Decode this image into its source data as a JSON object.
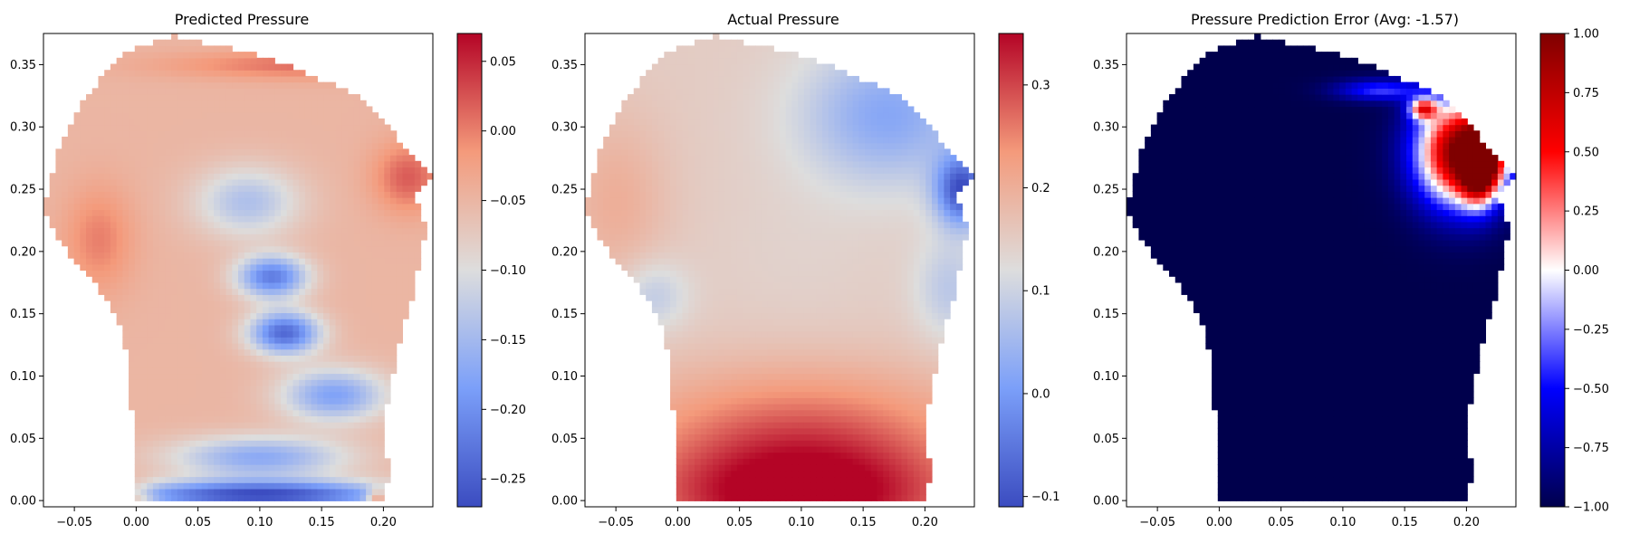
{
  "chart_data": [
    {
      "type": "heatmap",
      "title": "Predicted Pressure",
      "xlabel": "",
      "ylabel": "",
      "xlim": [
        -0.075,
        0.24
      ],
      "ylim": [
        -0.005,
        0.375
      ],
      "x_ticks": [
        -0.05,
        0.0,
        0.05,
        0.1,
        0.15,
        0.2
      ],
      "y_ticks": [
        0.0,
        0.05,
        0.1,
        0.15,
        0.2,
        0.25,
        0.3,
        0.35
      ],
      "colormap": "coolwarm",
      "colorbar": {
        "min": -0.27,
        "max": 0.07,
        "ticks": [
          -0.25,
          -0.2,
          -0.15,
          -0.1,
          -0.05,
          0.0,
          0.05
        ]
      },
      "domain_outline": [
        [
          0.0,
          0.0
        ],
        [
          0.2,
          0.0
        ],
        [
          0.205,
          0.02
        ],
        [
          0.2,
          0.06
        ],
        [
          0.21,
          0.115
        ],
        [
          0.225,
          0.17
        ],
        [
          0.235,
          0.22
        ],
        [
          0.225,
          0.245
        ],
        [
          0.24,
          0.26
        ],
        [
          0.18,
          0.325
        ],
        [
          0.11,
          0.355
        ],
        [
          0.03,
          0.373
        ],
        [
          -0.01,
          0.36
        ],
        [
          -0.045,
          0.32
        ],
        [
          -0.065,
          0.275
        ],
        [
          -0.075,
          0.235
        ],
        [
          -0.06,
          0.205
        ],
        [
          -0.03,
          0.17
        ],
        [
          -0.01,
          0.135
        ],
        [
          -0.005,
          0.09
        ],
        [
          0.0,
          0.03
        ]
      ],
      "field": {
        "base": -0.05,
        "features": [
          {
            "x": 0.1,
            "y": 0.005,
            "value": -0.27,
            "sx": 0.08,
            "sy": 0.008
          },
          {
            "x": 0.1,
            "y": 0.035,
            "value": -0.17,
            "sx": 0.05,
            "sy": 0.012
          },
          {
            "x": 0.12,
            "y": 0.135,
            "value": -0.24,
            "sx": 0.02,
            "sy": 0.012
          },
          {
            "x": 0.11,
            "y": 0.18,
            "value": -0.22,
            "sx": 0.02,
            "sy": 0.012
          },
          {
            "x": 0.16,
            "y": 0.085,
            "value": -0.18,
            "sx": 0.03,
            "sy": 0.015
          },
          {
            "x": 0.09,
            "y": 0.24,
            "value": -0.14,
            "sx": 0.03,
            "sy": 0.02
          },
          {
            "x": 0.14,
            "y": 0.35,
            "value": 0.01,
            "sx": 0.08,
            "sy": 0.008
          },
          {
            "x": 0.22,
            "y": 0.26,
            "value": 0.02,
            "sx": 0.02,
            "sy": 0.02
          },
          {
            "x": -0.03,
            "y": 0.21,
            "value": 0.0,
            "sx": 0.02,
            "sy": 0.03
          },
          {
            "x": 0.195,
            "y": 0.002,
            "value": 0.07,
            "sx": 0.006,
            "sy": 0.006
          },
          {
            "x": 0.0,
            "y": 0.0,
            "value": 0.02,
            "sx": 0.01,
            "sy": 0.01
          }
        ]
      }
    },
    {
      "type": "heatmap",
      "title": "Actual Pressure",
      "xlabel": "",
      "ylabel": "",
      "xlim": [
        -0.075,
        0.24
      ],
      "ylim": [
        -0.005,
        0.375
      ],
      "x_ticks": [
        -0.05,
        0.0,
        0.05,
        0.1,
        0.15,
        0.2
      ],
      "y_ticks": [
        0.0,
        0.05,
        0.1,
        0.15,
        0.2,
        0.25,
        0.3,
        0.35
      ],
      "colormap": "coolwarm",
      "colorbar": {
        "min": -0.11,
        "max": 0.35,
        "ticks": [
          -0.1,
          0.0,
          0.1,
          0.2,
          0.3
        ]
      },
      "domain_outline": [
        [
          0.0,
          0.0
        ],
        [
          0.2,
          0.0
        ],
        [
          0.205,
          0.02
        ],
        [
          0.2,
          0.06
        ],
        [
          0.21,
          0.115
        ],
        [
          0.225,
          0.17
        ],
        [
          0.235,
          0.22
        ],
        [
          0.225,
          0.245
        ],
        [
          0.24,
          0.26
        ],
        [
          0.18,
          0.325
        ],
        [
          0.11,
          0.355
        ],
        [
          0.03,
          0.373
        ],
        [
          -0.01,
          0.36
        ],
        [
          -0.045,
          0.32
        ],
        [
          -0.065,
          0.275
        ],
        [
          -0.075,
          0.235
        ],
        [
          -0.06,
          0.205
        ],
        [
          -0.03,
          0.17
        ],
        [
          -0.01,
          0.135
        ],
        [
          -0.005,
          0.09
        ],
        [
          0.0,
          0.03
        ]
      ],
      "field": {
        "base": 0.15,
        "features": [
          {
            "x": 0.1,
            "y": 0.0,
            "value": 0.34,
            "sx": 0.09,
            "sy": 0.03
          },
          {
            "x": 0.1,
            "y": 0.05,
            "value": 0.28,
            "sx": 0.1,
            "sy": 0.04
          },
          {
            "x": -0.05,
            "y": 0.24,
            "value": 0.2,
            "sx": 0.03,
            "sy": 0.05
          },
          {
            "x": 0.17,
            "y": 0.31,
            "value": 0.02,
            "sx": 0.05,
            "sy": 0.04
          },
          {
            "x": 0.23,
            "y": 0.25,
            "value": -0.1,
            "sx": 0.015,
            "sy": 0.02
          },
          {
            "x": 0.22,
            "y": 0.17,
            "value": 0.08,
            "sx": 0.02,
            "sy": 0.03
          },
          {
            "x": -0.02,
            "y": 0.165,
            "value": 0.08,
            "sx": 0.02,
            "sy": 0.02
          },
          {
            "x": 0.1,
            "y": 0.2,
            "value": 0.14,
            "sx": 0.05,
            "sy": 0.05
          }
        ]
      }
    },
    {
      "type": "heatmap",
      "title": "Pressure Prediction Error (Avg: -1.57)",
      "xlabel": "",
      "ylabel": "",
      "xlim": [
        -0.075,
        0.24
      ],
      "ylim": [
        -0.005,
        0.375
      ],
      "x_ticks": [
        -0.05,
        0.0,
        0.05,
        0.1,
        0.15,
        0.2
      ],
      "y_ticks": [
        0.0,
        0.05,
        0.1,
        0.15,
        0.2,
        0.25,
        0.3,
        0.35
      ],
      "colormap": "seismic",
      "colorbar": {
        "min": -1.0,
        "max": 1.0,
        "ticks": [
          -1.0,
          -0.75,
          -0.5,
          -0.25,
          0.0,
          0.25,
          0.5,
          0.75,
          1.0
        ]
      },
      "domain_outline": [
        [
          0.0,
          0.0
        ],
        [
          0.2,
          0.0
        ],
        [
          0.205,
          0.02
        ],
        [
          0.2,
          0.06
        ],
        [
          0.21,
          0.115
        ],
        [
          0.225,
          0.17
        ],
        [
          0.235,
          0.22
        ],
        [
          0.225,
          0.245
        ],
        [
          0.24,
          0.26
        ],
        [
          0.18,
          0.325
        ],
        [
          0.11,
          0.355
        ],
        [
          0.03,
          0.373
        ],
        [
          -0.01,
          0.36
        ],
        [
          -0.045,
          0.32
        ],
        [
          -0.065,
          0.275
        ],
        [
          -0.075,
          0.235
        ],
        [
          -0.06,
          0.205
        ],
        [
          -0.03,
          0.17
        ],
        [
          -0.01,
          0.135
        ],
        [
          -0.005,
          0.09
        ],
        [
          0.0,
          0.03
        ]
      ],
      "field": {
        "base": -1.0,
        "features": [
          {
            "x": 0.195,
            "y": 0.28,
            "value": 1.0,
            "sx": 0.025,
            "sy": 0.03
          },
          {
            "x": 0.21,
            "y": 0.27,
            "value": 0.6,
            "sx": 0.01,
            "sy": 0.02
          },
          {
            "x": 0.13,
            "y": 0.33,
            "value": -0.4,
            "sx": 0.025,
            "sy": 0.006
          },
          {
            "x": 0.22,
            "y": 0.27,
            "value": -0.5,
            "sx": 0.012,
            "sy": 0.015
          },
          {
            "x": 0.165,
            "y": 0.315,
            "value": 0.2,
            "sx": 0.008,
            "sy": 0.006
          }
        ]
      }
    }
  ]
}
